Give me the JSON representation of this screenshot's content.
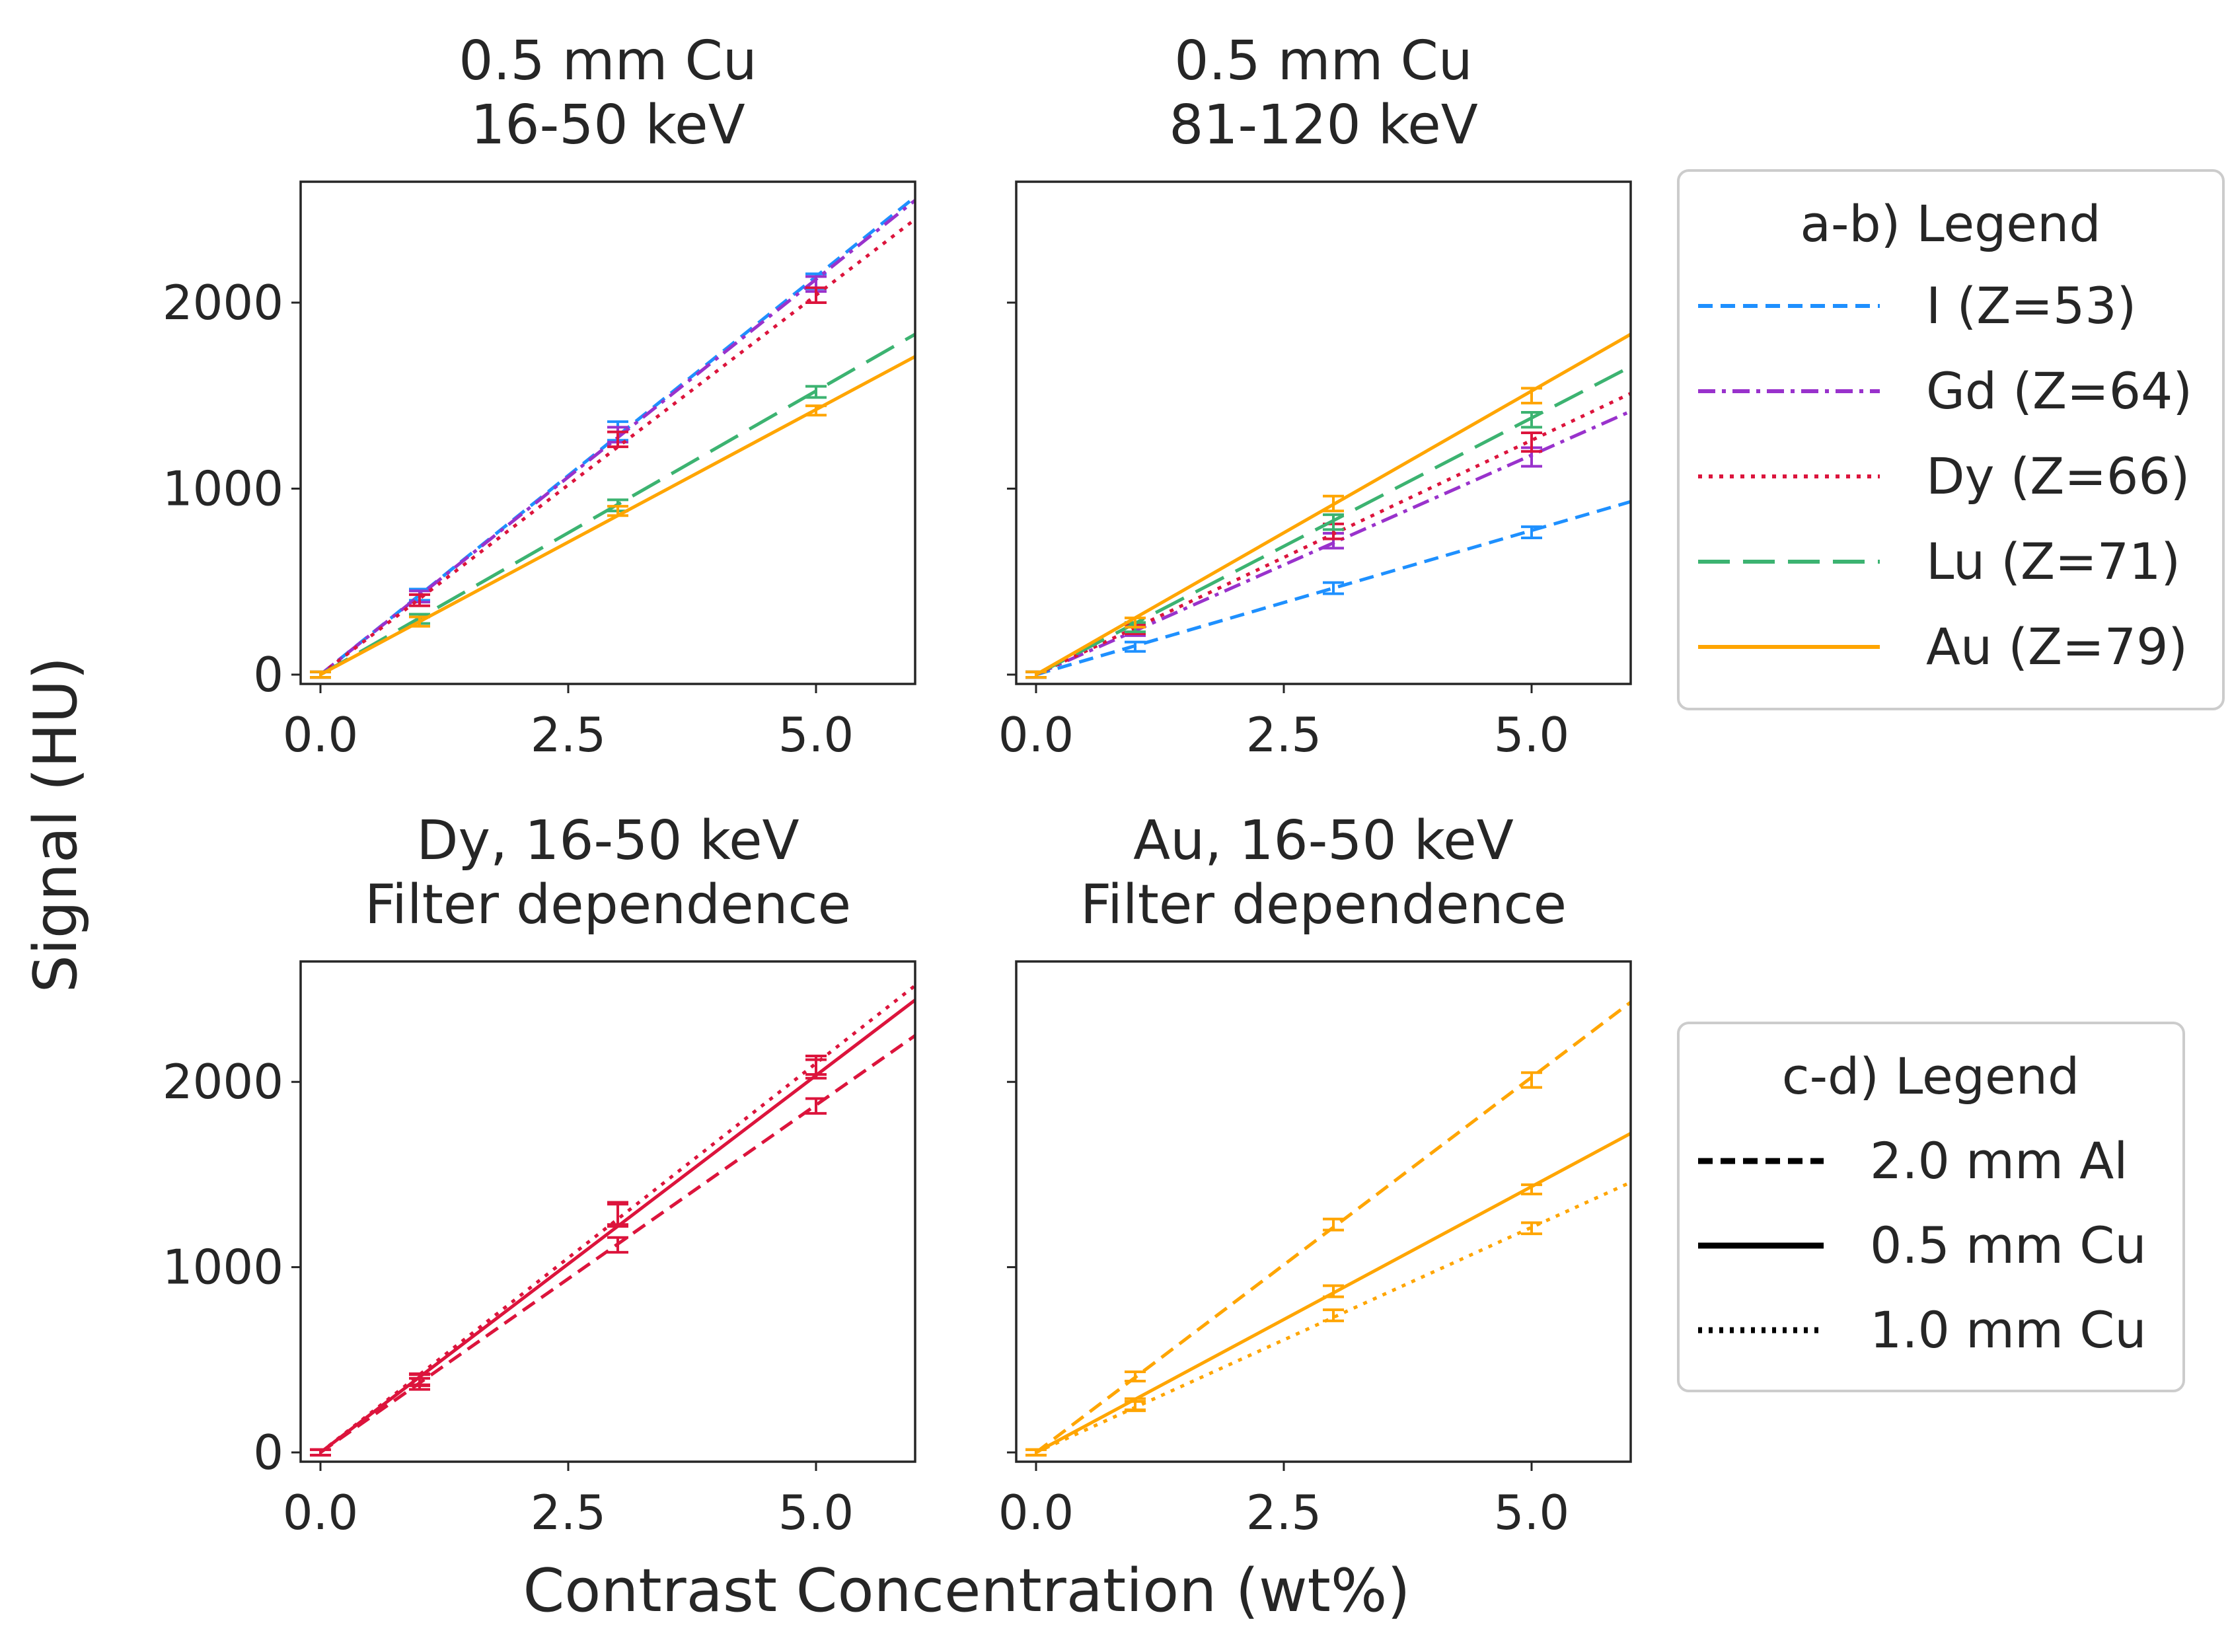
{
  "figure": {
    "ylabel": "Signal (HU)",
    "xlabel": "Contrast Concentration (wt%)"
  },
  "colors": {
    "I": "#1e90ff",
    "Gd": "#9932cc",
    "Dy": "#dc143c",
    "Lu": "#3cb371",
    "Au": "#ffa500",
    "black": "#000000"
  },
  "legends": {
    "ab": {
      "title": "a-b) Legend",
      "entries": [
        {
          "label": "I (Z=53)",
          "color": "I",
          "style": "dashed"
        },
        {
          "label": "Gd (Z=64)",
          "color": "Gd",
          "style": "dashdot"
        },
        {
          "label": "Dy (Z=66)",
          "color": "Dy",
          "style": "dotted"
        },
        {
          "label": "Lu (Z=71)",
          "color": "Lu",
          "style": "longdash"
        },
        {
          "label": "Au (Z=79)",
          "color": "Au",
          "style": "solid"
        }
      ]
    },
    "cd": {
      "title": "c-d) Legend",
      "entries": [
        {
          "label": "2.0 mm Al",
          "color": "black",
          "style": "dashed"
        },
        {
          "label": "0.5 mm Cu",
          "color": "black",
          "style": "solid"
        },
        {
          "label": "1.0 mm Cu",
          "color": "black",
          "style": "dotted"
        }
      ]
    }
  },
  "chart_data": [
    {
      "id": "a",
      "type": "line",
      "title": [
        "0.5 mm Cu",
        "16-50 keV"
      ],
      "xlim": [
        -0.2,
        6.0
      ],
      "ylim": [
        -50,
        2650
      ],
      "xticks": [
        0.0,
        2.5,
        5.0
      ],
      "yticks": [
        0,
        1000,
        2000
      ],
      "xticklabels": [
        "0.0",
        "2.5",
        "5.0"
      ],
      "yticklabels": [
        "0",
        "1000",
        "2000"
      ],
      "show_yticklabels": true,
      "series": [
        {
          "name": "I (Z=53)",
          "color": "I",
          "style": "dashed",
          "x": [
            0,
            1,
            3,
            5
          ],
          "y": [
            0,
            430,
            1310,
            2115
          ],
          "err": [
            15,
            30,
            50,
            40
          ],
          "slope": 428
        },
        {
          "name": "Gd (Z=64)",
          "color": "Gd",
          "style": "dashdot",
          "x": [
            0,
            1,
            3,
            5
          ],
          "y": [
            0,
            420,
            1290,
            2100
          ],
          "err": [
            15,
            30,
            40,
            40
          ],
          "slope": 425
        },
        {
          "name": "Dy (Z=66)",
          "color": "Dy",
          "style": "dotted",
          "x": [
            0,
            1,
            3,
            5
          ],
          "y": [
            0,
            400,
            1265,
            2040
          ],
          "err": [
            15,
            30,
            40,
            40
          ],
          "slope": 408
        },
        {
          "name": "Lu (Z=71)",
          "color": "Lu",
          "style": "longdash",
          "x": [
            0,
            1,
            3,
            5
          ],
          "y": [
            0,
            300,
            910,
            1520
          ],
          "err": [
            15,
            25,
            30,
            30
          ],
          "slope": 305
        },
        {
          "name": "Au (Z=79)",
          "color": "Au",
          "style": "solid",
          "x": [
            0,
            1,
            3,
            5
          ],
          "y": [
            0,
            285,
            880,
            1420
          ],
          "err": [
            15,
            25,
            25,
            25
          ],
          "slope": 285
        }
      ]
    },
    {
      "id": "b",
      "type": "line",
      "title": [
        "0.5 mm Cu",
        "81-120 keV"
      ],
      "xlim": [
        -0.2,
        6.0
      ],
      "ylim": [
        -50,
        2650
      ],
      "xticks": [
        0.0,
        2.5,
        5.0
      ],
      "yticks": [
        0,
        1000,
        2000
      ],
      "xticklabels": [
        "0.0",
        "2.5",
        "5.0"
      ],
      "yticklabels": [
        "0",
        "1000",
        "2000"
      ],
      "show_yticklabels": false,
      "series": [
        {
          "name": "I (Z=53)",
          "color": "I",
          "style": "dashed",
          "x": [
            0,
            1,
            3,
            5
          ],
          "y": [
            0,
            150,
            465,
            765
          ],
          "err": [
            15,
            25,
            30,
            30
          ],
          "slope": 155
        },
        {
          "name": "Gd (Z=64)",
          "color": "Gd",
          "style": "dashdot",
          "x": [
            0,
            1,
            3,
            5
          ],
          "y": [
            0,
            235,
            720,
            1170
          ],
          "err": [
            15,
            25,
            40,
            50
          ],
          "slope": 236
        },
        {
          "name": "Dy (Z=66)",
          "color": "Dy",
          "style": "dotted",
          "x": [
            0,
            1,
            3,
            5
          ],
          "y": [
            0,
            245,
            770,
            1250
          ],
          "err": [
            15,
            25,
            40,
            50
          ],
          "slope": 252
        },
        {
          "name": "Lu (Z=71)",
          "color": "Lu",
          "style": "longdash",
          "x": [
            0,
            1,
            3,
            5
          ],
          "y": [
            0,
            255,
            820,
            1370
          ],
          "err": [
            15,
            25,
            40,
            40
          ],
          "slope": 276
        },
        {
          "name": "Au (Z=79)",
          "color": "Au",
          "style": "solid",
          "x": [
            0,
            1,
            3,
            5
          ],
          "y": [
            0,
            280,
            920,
            1500
          ],
          "err": [
            15,
            25,
            40,
            40
          ],
          "slope": 305
        }
      ]
    },
    {
      "id": "c",
      "type": "line",
      "title": [
        "Dy, 16-50 keV",
        "Filter dependence"
      ],
      "xlim": [
        -0.2,
        6.0
      ],
      "ylim": [
        -50,
        2650
      ],
      "xticks": [
        0.0,
        2.5,
        5.0
      ],
      "yticks": [
        0,
        1000,
        2000
      ],
      "xticklabels": [
        "0.0",
        "2.5",
        "5.0"
      ],
      "yticklabels": [
        "0",
        "1000",
        "2000"
      ],
      "show_yticklabels": true,
      "series": [
        {
          "name": "2.0 mm Al",
          "color": "Dy",
          "style": "dashed",
          "x": [
            0,
            1,
            3,
            5
          ],
          "y": [
            0,
            370,
            1120,
            1870
          ],
          "err": [
            15,
            30,
            40,
            40
          ],
          "slope": 375
        },
        {
          "name": "0.5 mm Cu",
          "color": "Dy",
          "style": "solid",
          "x": [
            0,
            1,
            3,
            5
          ],
          "y": [
            0,
            390,
            1280,
            2070
          ],
          "err": [
            15,
            30,
            60,
            50
          ],
          "slope": 407
        },
        {
          "name": "1.0 mm Cu",
          "color": "Dy",
          "style": "dotted",
          "x": [
            0,
            1,
            3,
            5
          ],
          "y": [
            0,
            395,
            1290,
            2090
          ],
          "err": [
            15,
            30,
            60,
            50
          ],
          "slope": 420
        }
      ]
    },
    {
      "id": "d",
      "type": "line",
      "title": [
        "Au, 16-50 keV",
        "Filter dependence"
      ],
      "xlim": [
        -0.2,
        6.0
      ],
      "ylim": [
        -50,
        2650
      ],
      "xticks": [
        0.0,
        2.5,
        5.0
      ],
      "yticks": [
        0,
        1000,
        2000
      ],
      "xticklabels": [
        "0.0",
        "2.5",
        "5.0"
      ],
      "yticklabels": [
        "0",
        "1000",
        "2000"
      ],
      "show_yticklabels": false,
      "series": [
        {
          "name": "2.0 mm Al",
          "color": "Au",
          "style": "dashed",
          "x": [
            0,
            1,
            3,
            5
          ],
          "y": [
            0,
            410,
            1230,
            2010
          ],
          "err": [
            15,
            25,
            30,
            40
          ],
          "slope": 405
        },
        {
          "name": "0.5 mm Cu",
          "color": "Au",
          "style": "solid",
          "x": [
            0,
            1,
            3,
            5
          ],
          "y": [
            0,
            260,
            870,
            1420
          ],
          "err": [
            15,
            30,
            30,
            25
          ],
          "slope": 287
        },
        {
          "name": "1.0 mm Cu",
          "color": "Au",
          "style": "dotted",
          "x": [
            0,
            1,
            3,
            5
          ],
          "y": [
            0,
            250,
            740,
            1210
          ],
          "err": [
            15,
            25,
            30,
            30
          ],
          "slope": 243
        }
      ]
    }
  ]
}
